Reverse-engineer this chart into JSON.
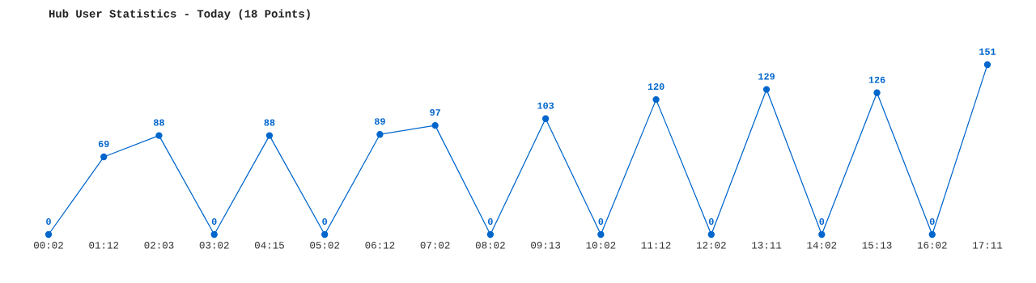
{
  "chart_data": {
    "type": "line",
    "title": "Hub User Statistics - Today (18 Points)",
    "categories": [
      "00:02",
      "01:12",
      "02:03",
      "03:02",
      "04:15",
      "05:02",
      "06:12",
      "07:02",
      "08:02",
      "09:13",
      "10:02",
      "11:12",
      "12:02",
      "13:11",
      "14:02",
      "15:13",
      "16:02",
      "17:11"
    ],
    "series": [
      {
        "color": "#0066cc",
        "values": [
          0,
          69,
          88,
          0,
          88,
          0,
          89,
          97,
          0,
          103,
          0,
          120,
          0,
          129,
          0,
          126,
          0,
          151
        ]
      }
    ],
    "data_labels": true,
    "marker": "circle",
    "line_style": "solid",
    "grid": false,
    "legend": false
  }
}
